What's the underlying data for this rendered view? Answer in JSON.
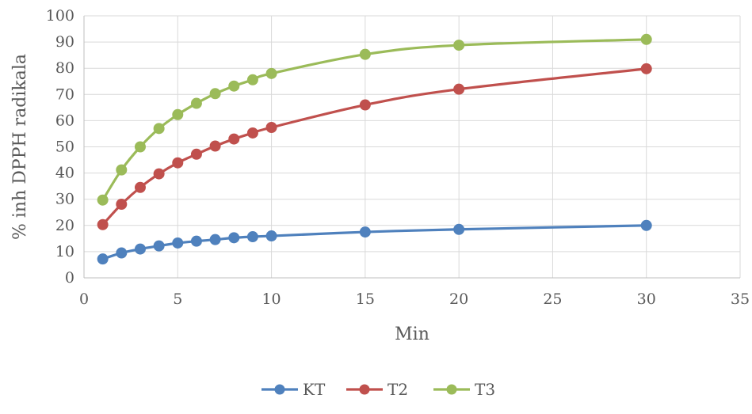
{
  "chart_data": {
    "type": "line",
    "title": "",
    "xlabel": "Min",
    "ylabel": "% inh DPPH radikala",
    "xlim": [
      0,
      35
    ],
    "ylim": [
      0,
      100
    ],
    "x_ticks": [
      "0",
      "5",
      "10",
      "15",
      "20",
      "25",
      "30",
      "35"
    ],
    "y_ticks": [
      "0",
      "10",
      "20",
      "30",
      "40",
      "50",
      "60",
      "70",
      "80",
      "90",
      "100"
    ],
    "grid": true,
    "legend_position": "bottom",
    "x": [
      1,
      2,
      3,
      4,
      5,
      6,
      7,
      8,
      9,
      10,
      15,
      20,
      30
    ],
    "series": [
      {
        "name": "KT",
        "color": "#4f81bd",
        "values": [
          7.2,
          9.5,
          11,
          12.2,
          13.3,
          14,
          14.6,
          15.3,
          15.7,
          16,
          17.5,
          18.5,
          20
        ]
      },
      {
        "name": "T2",
        "color": "#c0504d",
        "values": [
          20.3,
          28.1,
          34.5,
          39.7,
          43.9,
          47.2,
          50.3,
          53,
          55.3,
          57.4,
          66,
          72,
          79.8
        ]
      },
      {
        "name": "T3",
        "color": "#9bbb59",
        "values": [
          29.7,
          41.2,
          50,
          57,
          62.3,
          66.6,
          70.3,
          73.2,
          75.6,
          78,
          85.3,
          88.8,
          91
        ]
      }
    ]
  }
}
